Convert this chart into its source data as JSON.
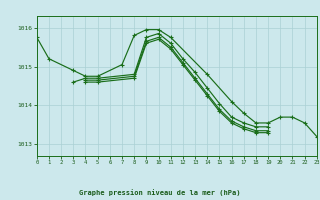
{
  "title": "Graphe pression niveau de la mer (hPa)",
  "background_color": "#cce8ec",
  "grid_color": "#aad0d5",
  "line_color": "#1a6e1a",
  "text_color": "#1a5c1a",
  "xlim": [
    0,
    23
  ],
  "ylim": [
    1012.7,
    1016.3
  ],
  "yticks": [
    1013,
    1014,
    1015,
    1016
  ],
  "xticks": [
    0,
    1,
    2,
    3,
    4,
    5,
    6,
    7,
    8,
    9,
    10,
    11,
    12,
    13,
    14,
    15,
    16,
    17,
    18,
    19,
    20,
    21,
    22,
    23
  ],
  "line1_x": [
    0,
    1,
    3,
    4,
    5,
    7,
    8,
    9,
    10,
    11,
    14,
    16,
    17,
    18,
    19,
    20,
    21,
    22,
    23
  ],
  "line1_y": [
    1015.75,
    1015.2,
    1014.9,
    1014.75,
    1014.75,
    1015.05,
    1015.8,
    1015.95,
    1015.95,
    1015.75,
    1014.8,
    1014.1,
    1013.8,
    1013.55,
    1013.55,
    1013.7,
    1013.7,
    1013.55,
    1013.2
  ],
  "line2_x": [
    3,
    4,
    5,
    8,
    9,
    10,
    11,
    12,
    13,
    14,
    15,
    16,
    17,
    18,
    19
  ],
  "line2_y": [
    1014.6,
    1014.7,
    1014.7,
    1014.8,
    1015.75,
    1015.85,
    1015.6,
    1015.2,
    1014.85,
    1014.45,
    1014.05,
    1013.7,
    1013.55,
    1013.45,
    1013.45
  ],
  "line3_x": [
    4,
    5,
    8,
    9,
    10,
    11,
    12,
    13,
    14,
    15,
    16,
    17,
    18,
    19
  ],
  "line3_y": [
    1014.65,
    1014.65,
    1014.75,
    1015.65,
    1015.75,
    1015.5,
    1015.1,
    1014.7,
    1014.3,
    1013.9,
    1013.6,
    1013.45,
    1013.35,
    1013.35
  ],
  "line4_x": [
    4,
    5,
    8,
    9,
    10,
    11,
    12,
    13,
    14,
    15,
    16,
    17,
    18,
    19
  ],
  "line4_y": [
    1014.6,
    1014.6,
    1014.7,
    1015.6,
    1015.7,
    1015.45,
    1015.05,
    1014.65,
    1014.25,
    1013.85,
    1013.55,
    1013.4,
    1013.3,
    1013.3
  ]
}
